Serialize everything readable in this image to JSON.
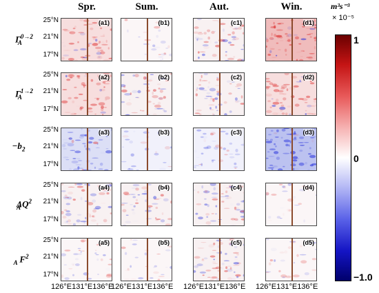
{
  "columns": [
    "Spr.",
    "Sum.",
    "Aut.",
    "Win."
  ],
  "rows": [
    {
      "label": "Γ_A^{0→2}",
      "display": "Γ",
      "sup": "0→2",
      "sub": "A",
      "panels": [
        "(a1)",
        "(b1)",
        "(c1)",
        "(d1)"
      ]
    },
    {
      "label": "Γ_A^{1→2}",
      "display": "Γ",
      "sup": "1→2",
      "sub": "A",
      "panels": [
        "(a2)",
        "(b2)",
        "(c2)",
        "(d2)"
      ]
    },
    {
      "label": "−b_2",
      "display": "−b",
      "sup": "",
      "sub": "2",
      "panels": [
        "(a3)",
        "(b3)",
        "(c3)",
        "(d3)"
      ]
    },
    {
      "label": "ΔQ_A^2",
      "display": "ΔQ",
      "sup": "2",
      "sub": "A",
      "panels": [
        "(a4)",
        "(b4)",
        "(c4)",
        "(d4)"
      ]
    },
    {
      "label": "F_A^2",
      "display": "F",
      "sup": "2",
      "sub": "A",
      "panels": [
        "(a5)",
        "(b5)",
        "(c5)",
        "(d5)"
      ]
    }
  ],
  "lat_ticks": [
    "25°N",
    "21°N",
    "17°N"
  ],
  "lon_ticks": [
    "126°E",
    "131°E",
    "136°E"
  ],
  "colorbar": {
    "units": "m³s⁻³",
    "scale": "× 10⁻⁵",
    "max_label": "1",
    "mid_label": "0",
    "min_label": "−1.0",
    "max_color": "#6b0000",
    "min_color": "#00006b",
    "mid_color": "#ffffff"
  },
  "panel_tone": [
    [
      "red",
      "faint",
      "mixed",
      "strong-red"
    ],
    [
      "red",
      "mixed",
      "mixed",
      "red"
    ],
    [
      "blue",
      "faint-blue",
      "faint-blue",
      "strong-blue"
    ],
    [
      "mixed",
      "mixed",
      "mixed",
      "faint"
    ],
    [
      "faint",
      "faint",
      "mixed",
      "faint"
    ]
  ]
}
